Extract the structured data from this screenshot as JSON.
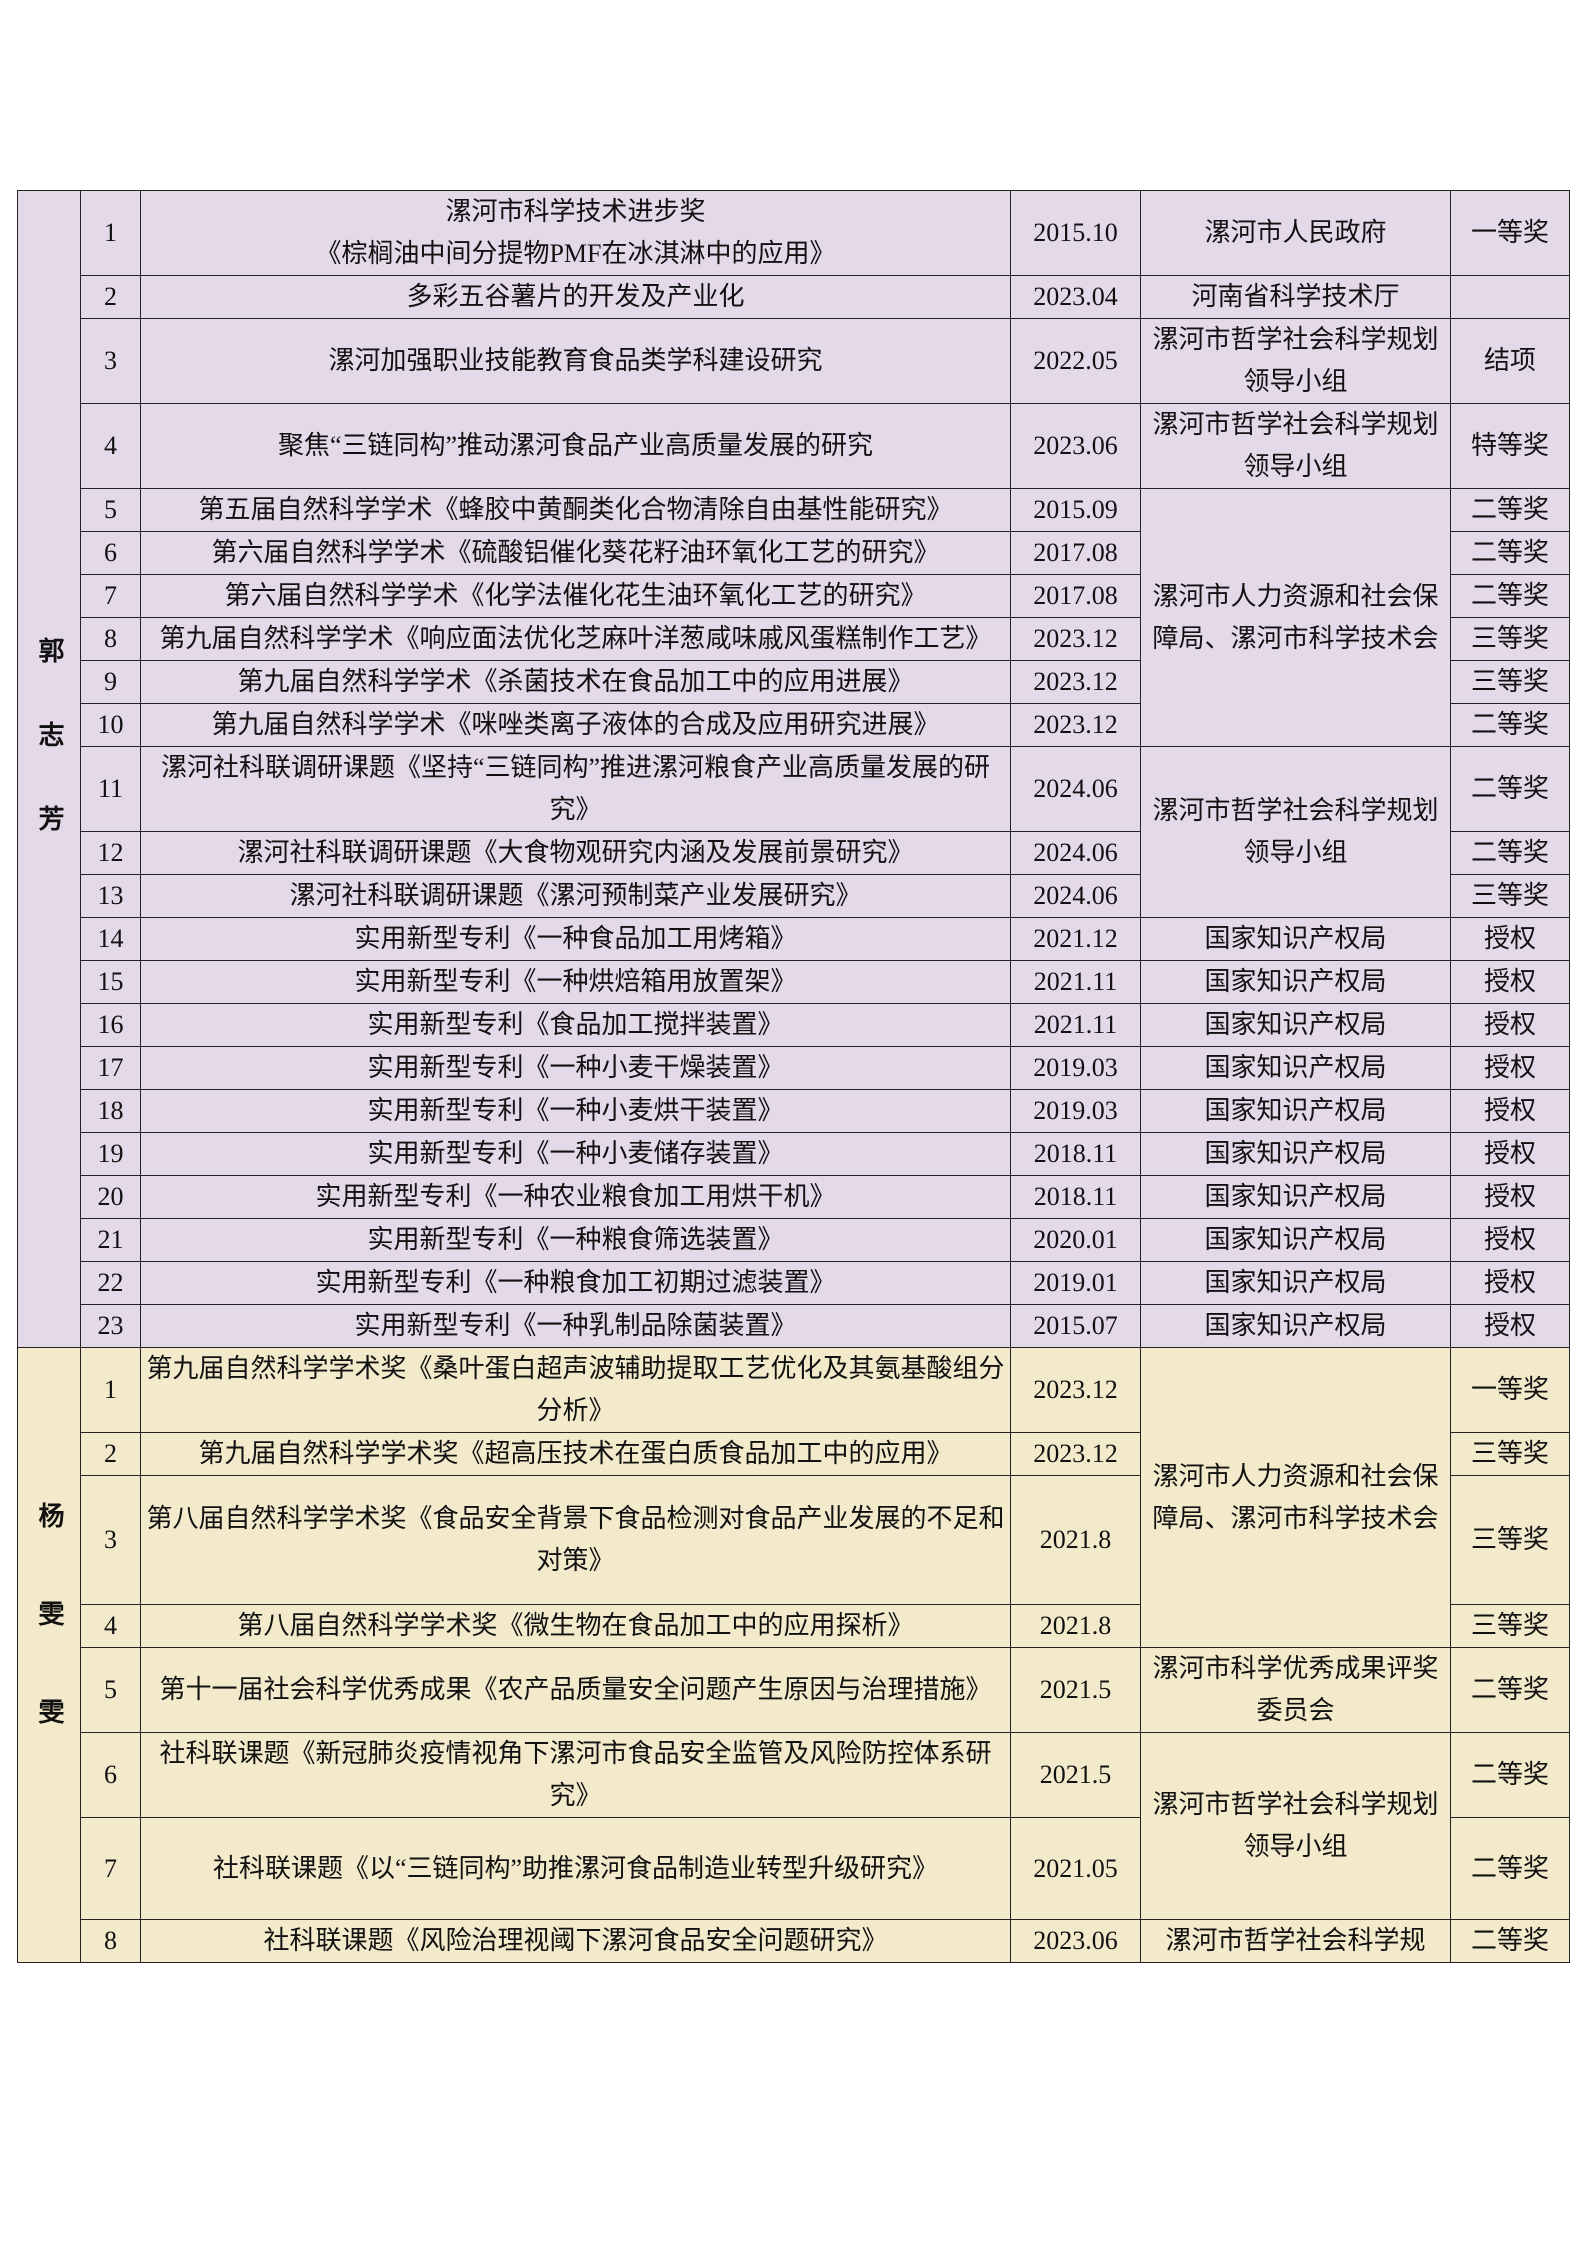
{
  "colors": {
    "section_guo": "#e4d9e8",
    "section_yang": "#f2eacb",
    "border": "#222222"
  },
  "sections": [
    {
      "name": "郭志芳",
      "groups": [
        {
          "issuer": "漯河市人民政府",
          "items": [
            {
              "no": "1",
              "title": "漯河市科学技术进步奖\n《棕榈油中间分提物PMF在冰淇淋中的应用》",
              "date": "2015.10",
              "award": "一等奖"
            }
          ]
        },
        {
          "issuer": "河南省科学技术厅",
          "items": [
            {
              "no": "2",
              "title": "多彩五谷薯片的开发及产业化",
              "date": "2023.04",
              "award": ""
            }
          ]
        },
        {
          "issuer": "漯河市哲学社会科学规划领导小组",
          "items": [
            {
              "no": "3",
              "title": "漯河加强职业技能教育食品类学科建设研究",
              "date": "2022.05",
              "award": "结项"
            }
          ]
        },
        {
          "issuer": "漯河市哲学社会科学规划领导小组",
          "items": [
            {
              "no": "4",
              "title": "聚焦“三链同构”推动漯河食品产业高质量发展的研究",
              "date": "2023.06",
              "award": "特等奖"
            }
          ]
        },
        {
          "issuer": "漯河市人力资源和社会保障局、漯河市科学技术会",
          "items": [
            {
              "no": "5",
              "title": "第五届自然科学学术《蜂胶中黄酮类化合物清除自由基性能研究》",
              "date": "2015.09",
              "award": "二等奖"
            },
            {
              "no": "6",
              "title": "第六届自然科学学术《硫酸铝催化葵花籽油环氧化工艺的研究》",
              "date": "2017.08",
              "award": "二等奖"
            },
            {
              "no": "7",
              "title": "第六届自然科学学术《化学法催化花生油环氧化工艺的研究》",
              "date": "2017.08",
              "award": "二等奖"
            },
            {
              "no": "8",
              "title": "第九届自然科学学术《响应面法优化芝麻叶洋葱咸味戚风蛋糕制作工艺》",
              "date": "2023.12",
              "award": "三等奖"
            },
            {
              "no": "9",
              "title": "第九届自然科学学术《杀菌技术在食品加工中的应用进展》",
              "date": "2023.12",
              "award": "三等奖"
            },
            {
              "no": "10",
              "title": "第九届自然科学学术《咪唑类离子液体的合成及应用研究进展》",
              "date": "2023.12",
              "award": "二等奖"
            }
          ]
        },
        {
          "issuer": "漯河市哲学社会科学规划领导小组",
          "items": [
            {
              "no": "11",
              "title": "漯河社科联调研课题《坚持“三链同构”推进漯河粮食产业高质量发展的研究》",
              "date": "2024.06",
              "award": "二等奖"
            },
            {
              "no": "12",
              "title": "漯河社科联调研课题《大食物观研究内涵及发展前景研究》",
              "date": "2024.06",
              "award": "二等奖"
            },
            {
              "no": "13",
              "title": "漯河社科联调研课题《漯河预制菜产业发展研究》",
              "date": "2024.06",
              "award": "三等奖"
            }
          ]
        },
        {
          "issuer": "国家知识产权局",
          "items": [
            {
              "no": "14",
              "title": "实用新型专利《一种食品加工用烤箱》",
              "date": "2021.12",
              "award": "授权"
            }
          ]
        },
        {
          "issuer": "国家知识产权局",
          "items": [
            {
              "no": "15",
              "title": "实用新型专利《一种烘焙箱用放置架》",
              "date": "2021.11",
              "award": "授权"
            }
          ]
        },
        {
          "issuer": "国家知识产权局",
          "items": [
            {
              "no": "16",
              "title": "实用新型专利《食品加工搅拌装置》",
              "date": "2021.11",
              "award": "授权"
            }
          ]
        },
        {
          "issuer": "国家知识产权局",
          "items": [
            {
              "no": "17",
              "title": "实用新型专利《一种小麦干燥装置》",
              "date": "2019.03",
              "award": "授权"
            }
          ]
        },
        {
          "issuer": "国家知识产权局",
          "items": [
            {
              "no": "18",
              "title": "实用新型专利《一种小麦烘干装置》",
              "date": "2019.03",
              "award": "授权"
            }
          ]
        },
        {
          "issuer": "国家知识产权局",
          "items": [
            {
              "no": "19",
              "title": "实用新型专利《一种小麦储存装置》",
              "date": "2018.11",
              "award": "授权"
            }
          ]
        },
        {
          "issuer": "国家知识产权局",
          "items": [
            {
              "no": "20",
              "title": "实用新型专利《一种农业粮食加工用烘干机》",
              "date": "2018.11",
              "award": "授权"
            }
          ]
        },
        {
          "issuer": "国家知识产权局",
          "items": [
            {
              "no": "21",
              "title": "实用新型专利《一种粮食筛选装置》",
              "date": "2020.01",
              "award": "授权"
            }
          ]
        },
        {
          "issuer": "国家知识产权局",
          "items": [
            {
              "no": "22",
              "title": "实用新型专利《一种粮食加工初期过滤装置》",
              "date": "2019.01",
              "award": "授权"
            }
          ]
        },
        {
          "issuer": "国家知识产权局",
          "items": [
            {
              "no": "23",
              "title": "实用新型专利《一种乳制品除菌装置》",
              "date": "2015.07",
              "award": "授权"
            }
          ]
        }
      ]
    },
    {
      "name": "杨雯雯",
      "groups": [
        {
          "issuer": "漯河市人力资源和社会保障局、漯河市科学技术会",
          "items": [
            {
              "no": "1",
              "title": "第九届自然科学学术奖《桑叶蛋白超声波辅助提取工艺优化及其氨基酸组分分析》",
              "date": "2023.12",
              "award": "一等奖"
            },
            {
              "no": "2",
              "title": "第九届自然科学学术奖《超高压技术在蛋白质食品加工中的应用》",
              "date": "2023.12",
              "award": "三等奖"
            },
            {
              "no": "3",
              "title": "第八届自然科学学术奖《食品安全背景下食品检测对食品产业发展的不足和对策》",
              "date": "2021.8",
              "award": "三等奖"
            },
            {
              "no": "4",
              "title": "第八届自然科学学术奖《微生物在食品加工中的应用探析》",
              "date": "2021.8",
              "award": "三等奖"
            }
          ]
        },
        {
          "issuer": "漯河市科学优秀成果评奖委员会",
          "items": [
            {
              "no": "5",
              "title": "第十一届社会科学优秀成果《农产品质量安全问题产生原因与治理措施》",
              "date": "2021.5",
              "award": "二等奖"
            }
          ]
        },
        {
          "issuer": "漯河市哲学社会科学规划领导小组",
          "items": [
            {
              "no": "6",
              "title": "社科联课题《新冠肺炎疫情视角下漯河市食品安全监管及风险防控体系研究》",
              "date": "2021.5",
              "award": "二等奖"
            },
            {
              "no": "7",
              "title": "社科联课题《以“三链同构”助推漯河食品制造业转型升级研究》",
              "date": "2021.05",
              "award": "二等奖"
            }
          ]
        },
        {
          "issuer": "漯河市哲学社会科学规",
          "items": [
            {
              "no": "8",
              "title": "社科联课题《风险治理视阈下漯河食品安全问题研究》",
              "date": "2023.06",
              "award": "二等奖"
            }
          ]
        }
      ]
    }
  ]
}
